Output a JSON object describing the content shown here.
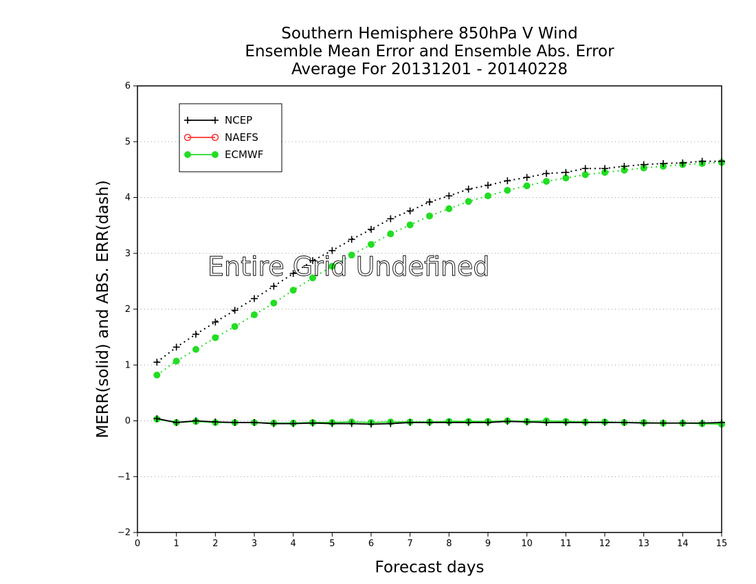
{
  "chart_data": {
    "type": "line",
    "title": [
      "Southern Hemisphere 850hPa V Wind",
      "Ensemble Mean Error and Ensemble Abs. Error",
      "Average For 20131201 - 20140228"
    ],
    "xlabel": "Forecast days",
    "ylabel": "MERR(solid) and ABS. ERR(dash)",
    "xlim": [
      0,
      15
    ],
    "ylim": [
      -2,
      6
    ],
    "xticks": [
      "0",
      "1",
      "2",
      "3",
      "4",
      "5",
      "6",
      "7",
      "8",
      "9",
      "10",
      "11",
      "12",
      "13",
      "14",
      "15"
    ],
    "yticks": [
      "−2",
      "−1",
      "0",
      "1",
      "2",
      "3",
      "4",
      "5",
      "6"
    ],
    "grid": "horizontal dotted",
    "legend_position": "top-left",
    "annotation": "Entire Grid Undefined",
    "legend": [
      {
        "name": "NCEP",
        "color": "#000000",
        "marker": "plus"
      },
      {
        "name": "NAEFS",
        "color": "#ff3030",
        "marker": "open-circle"
      },
      {
        "name": "ECMWF",
        "color": "#22dd22",
        "marker": "filled-circle"
      }
    ],
    "x": [
      0.5,
      1,
      1.5,
      2,
      2.5,
      3,
      3.5,
      4,
      4.5,
      5,
      5.5,
      6,
      6.5,
      7,
      7.5,
      8,
      8.5,
      9,
      9.5,
      10,
      10.5,
      11,
      11.5,
      12,
      12.5,
      13,
      13.5,
      14,
      14.5,
      15
    ],
    "series": [
      {
        "name": "NCEP",
        "kind": "abs_error",
        "style": "dash",
        "color": "#000000",
        "values": [
          1.05,
          1.32,
          1.55,
          1.77,
          1.98,
          2.19,
          2.41,
          2.64,
          2.87,
          3.05,
          3.25,
          3.43,
          3.62,
          3.76,
          3.92,
          4.03,
          4.15,
          4.22,
          4.3,
          4.36,
          4.43,
          4.45,
          4.52,
          4.52,
          4.56,
          4.59,
          4.61,
          4.62,
          4.65,
          4.65
        ]
      },
      {
        "name": "ECMWF",
        "kind": "abs_error",
        "style": "dash",
        "color": "#22dd22",
        "values": [
          0.82,
          1.07,
          1.28,
          1.49,
          1.69,
          1.9,
          2.11,
          2.34,
          2.56,
          2.77,
          2.97,
          3.16,
          3.35,
          3.51,
          3.67,
          3.8,
          3.93,
          4.03,
          4.13,
          4.21,
          4.29,
          4.35,
          4.41,
          4.45,
          4.49,
          4.53,
          4.56,
          4.59,
          4.61,
          4.63
        ]
      },
      {
        "name": "NCEP",
        "kind": "mean_error",
        "style": "solid",
        "color": "#000000",
        "values": [
          0.04,
          -0.03,
          0.0,
          -0.02,
          -0.03,
          -0.03,
          -0.05,
          -0.05,
          -0.04,
          -0.05,
          -0.05,
          -0.06,
          -0.05,
          -0.03,
          -0.03,
          -0.03,
          -0.03,
          -0.03,
          -0.01,
          -0.02,
          -0.03,
          -0.03,
          -0.03,
          -0.03,
          -0.03,
          -0.04,
          -0.04,
          -0.04,
          -0.04,
          -0.03
        ]
      },
      {
        "name": "ECMWF",
        "kind": "mean_error",
        "style": "solid",
        "color": "#22dd22",
        "values": [
          0.03,
          -0.03,
          -0.01,
          -0.03,
          -0.03,
          -0.03,
          -0.04,
          -0.04,
          -0.03,
          -0.03,
          -0.02,
          -0.03,
          -0.02,
          -0.02,
          -0.02,
          -0.01,
          -0.01,
          -0.01,
          0.0,
          -0.01,
          0.0,
          -0.01,
          -0.02,
          -0.02,
          -0.03,
          -0.03,
          -0.04,
          -0.04,
          -0.05,
          -0.06
        ]
      }
    ]
  }
}
